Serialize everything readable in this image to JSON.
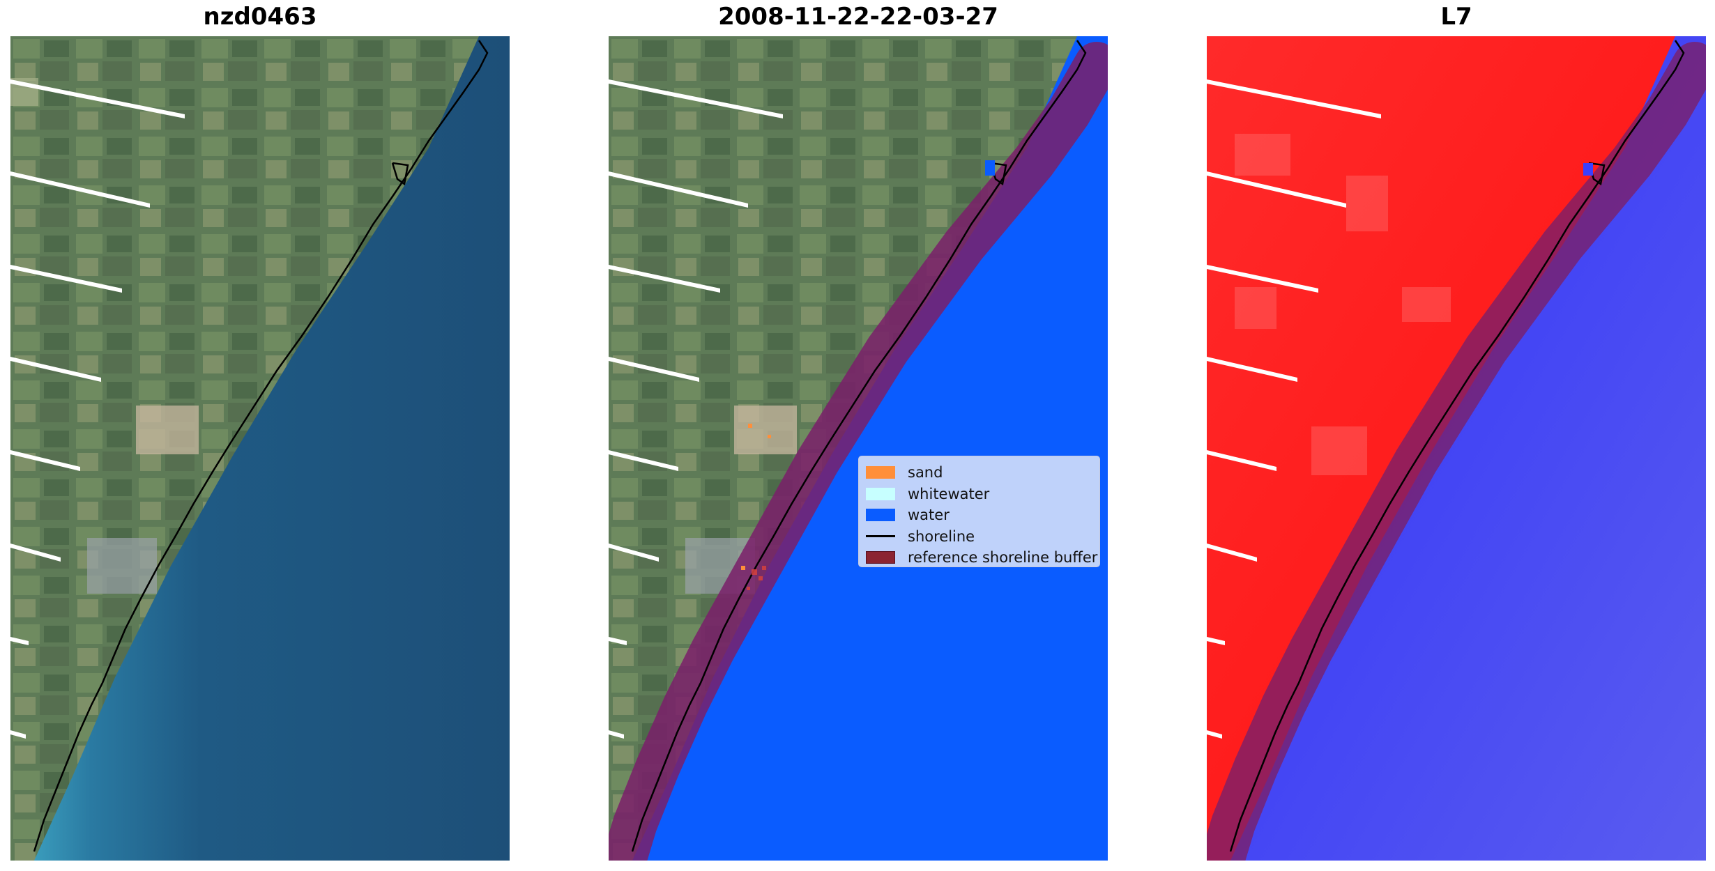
{
  "panels": [
    {
      "title": "nzd0463"
    },
    {
      "title": "2008-11-22-22-03-27"
    },
    {
      "title": "L7"
    }
  ],
  "legend": {
    "items": [
      {
        "label": "sand",
        "color": "#ff8f3a",
        "kind": "patch"
      },
      {
        "label": "whitewater",
        "color": "#c7ffff",
        "kind": "patch"
      },
      {
        "label": "water",
        "color": "#0a5cff",
        "kind": "patch"
      },
      {
        "label": "shoreline",
        "color": "#000000",
        "kind": "line"
      },
      {
        "label": "reference shoreline buffer",
        "color": "#8b2432",
        "kind": "patch"
      }
    ]
  },
  "colors": {
    "sea_dark": "#1f4f78",
    "sea_shallow": "#3e9ab8",
    "land_green": "#5c7a55",
    "water_class": "#0a5cff",
    "buffer": "#7a1f6a",
    "index_land": "#ff2020",
    "index_water": "#3b3fff"
  }
}
